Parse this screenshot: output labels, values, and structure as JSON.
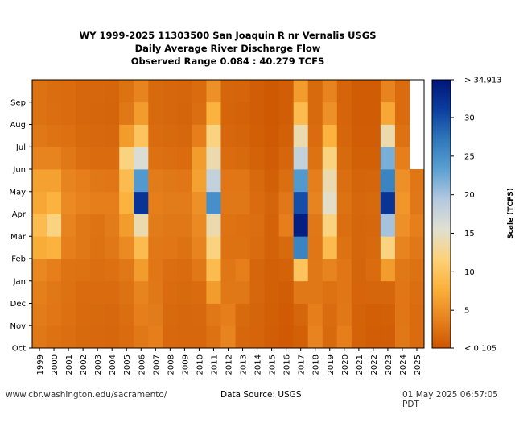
{
  "chart_data": {
    "type": "heatmap",
    "title_lines": [
      "WY 1999-2025 11303500 San Joaquin R nr Vernalis USGS",
      "Daily Average River Discharge Flow",
      "Observed Range 0.084 : 40.279 TCFS"
    ],
    "x_labels": [
      "1999",
      "2000",
      "2001",
      "2002",
      "2003",
      "2004",
      "2005",
      "2006",
      "2007",
      "2008",
      "2009",
      "2010",
      "2011",
      "2012",
      "2013",
      "2014",
      "2015",
      "2016",
      "2017",
      "2018",
      "2019",
      "2020",
      "2021",
      "2022",
      "2023",
      "2024",
      "2025"
    ],
    "y_labels": [
      "Oct",
      "Nov",
      "Dec",
      "Jan",
      "Feb",
      "Mar",
      "Apr",
      "May",
      "Jun",
      "Jul",
      "Aug",
      "Sep"
    ],
    "colorbar": {
      "label": "Scale (TCFS)",
      "top_label": "> 34.913",
      "bottom_label": "< 0.105",
      "ticks": [
        5,
        10,
        15,
        20,
        25,
        30
      ],
      "min": 0.105,
      "max": 34.913,
      "colors": [
        "#cc5500",
        "#e8841f",
        "#fbb13c",
        "#fcd27a",
        "#dfe0d2",
        "#b3c8e0",
        "#5aa0d2",
        "#2e78bb",
        "#0b3e9e",
        "#00157a"
      ]
    },
    "typical_monthly_flow_tcfs": {
      "1999": [
        3.0,
        3.2,
        3.6,
        4.2,
        7.5,
        9.0,
        7.0,
        6.5,
        4.0,
        3.0,
        2.5,
        2.5
      ],
      "2000": [
        2.5,
        2.8,
        3.0,
        3.5,
        8.0,
        12.0,
        8.0,
        6.5,
        4.0,
        2.6,
        2.2,
        2.1
      ],
      "2001": [
        2.2,
        2.4,
        2.5,
        2.6,
        3.5,
        4.0,
        4.5,
        4.0,
        3.0,
        2.4,
        2.0,
        2.0
      ],
      "2002": [
        1.8,
        1.9,
        2.0,
        2.5,
        3.0,
        3.0,
        3.8,
        3.5,
        2.2,
        1.8,
        1.6,
        1.6
      ],
      "2003": [
        1.7,
        1.8,
        2.0,
        2.2,
        2.5,
        2.6,
        3.5,
        3.0,
        2.0,
        1.7,
        1.5,
        1.6
      ],
      "2004": [
        1.6,
        1.7,
        2.0,
        2.4,
        3.0,
        3.2,
        3.5,
        2.8,
        2.0,
        1.6,
        1.4,
        1.5
      ],
      "2005": [
        2.0,
        2.2,
        2.5,
        3.0,
        4.5,
        6.0,
        8.0,
        9.0,
        12.0,
        6.0,
        3.0,
        2.5
      ],
      "2006": [
        3.0,
        3.5,
        4.0,
        6.0,
        9.0,
        14.0,
        32.0,
        24.0,
        16.0,
        10.0,
        6.0,
        4.0
      ],
      "2007": [
        3.5,
        3.2,
        3.0,
        2.8,
        3.0,
        3.2,
        3.5,
        3.2,
        2.4,
        2.0,
        1.8,
        1.8
      ],
      "2008": [
        1.7,
        1.8,
        2.0,
        2.2,
        2.8,
        3.0,
        3.2,
        3.0,
        2.2,
        1.8,
        1.6,
        1.6
      ],
      "2009": [
        1.6,
        1.6,
        1.8,
        2.0,
        2.5,
        3.0,
        3.2,
        2.8,
        2.0,
        1.6,
        1.4,
        1.5
      ],
      "2010": [
        1.6,
        1.7,
        2.0,
        3.0,
        4.0,
        4.5,
        5.0,
        6.5,
        6.0,
        3.5,
        2.2,
        2.0
      ],
      "2011": [
        2.5,
        3.0,
        6.0,
        9.0,
        12.0,
        14.0,
        25.0,
        18.0,
        14.0,
        12.0,
        8.0,
        5.0
      ],
      "2012": [
        4.0,
        3.5,
        3.0,
        2.8,
        2.5,
        2.6,
        3.0,
        2.8,
        2.0,
        1.6,
        1.4,
        1.5
      ],
      "2013": [
        1.6,
        1.8,
        3.0,
        3.5,
        2.5,
        2.4,
        3.0,
        2.8,
        1.8,
        1.4,
        1.2,
        1.3
      ],
      "2014": [
        1.3,
        1.4,
        1.6,
        1.5,
        2.0,
        2.2,
        2.0,
        1.8,
        1.2,
        0.9,
        0.8,
        0.8
      ],
      "2015": [
        0.8,
        0.9,
        1.0,
        1.0,
        1.2,
        1.2,
        1.4,
        1.0,
        0.7,
        0.5,
        0.4,
        0.4
      ],
      "2016": [
        0.5,
        0.6,
        0.8,
        1.2,
        1.8,
        3.5,
        3.0,
        2.2,
        1.5,
        1.0,
        0.8,
        0.8
      ],
      "2017": [
        1.0,
        1.5,
        3.0,
        10.0,
        26.0,
        34.0,
        30.0,
        24.0,
        18.0,
        14.0,
        9.0,
        6.0
      ],
      "2018": [
        4.0,
        3.5,
        3.0,
        3.0,
        2.8,
        3.0,
        4.0,
        3.5,
        2.5,
        2.0,
        1.8,
        1.8
      ],
      "2019": [
        1.8,
        2.0,
        2.5,
        4.0,
        9.0,
        12.0,
        15.0,
        14.0,
        12.0,
        8.0,
        5.0,
        4.0
      ],
      "2020": [
        3.5,
        3.0,
        2.8,
        2.8,
        2.5,
        2.2,
        2.5,
        2.2,
        1.8,
        1.5,
        1.3,
        1.3
      ],
      "2021": [
        1.2,
        1.2,
        1.3,
        1.4,
        1.5,
        1.5,
        1.6,
        1.4,
        1.0,
        0.8,
        0.7,
        0.7
      ],
      "2022": [
        0.8,
        0.9,
        1.5,
        2.0,
        1.8,
        1.6,
        1.8,
        1.5,
        1.0,
        0.8,
        0.7,
        0.7
      ],
      "2023": [
        0.8,
        1.0,
        1.5,
        6.0,
        12.0,
        20.0,
        32.0,
        26.0,
        22.0,
        14.0,
        7.0,
        4.0
      ],
      "2024": [
        3.0,
        2.8,
        2.8,
        3.0,
        4.0,
        5.0,
        5.5,
        5.0,
        3.5,
        2.5,
        2.0,
        2.0
      ],
      "2025": [
        2.0,
        2.0,
        2.2,
        2.5,
        3.0,
        3.5,
        3.0,
        2.8
      ]
    }
  },
  "footer": {
    "left": "www.cbr.washington.edu/sacramento/",
    "middle": "Data Source: USGS",
    "right": "01 May 2025 06:57:05 PDT"
  }
}
